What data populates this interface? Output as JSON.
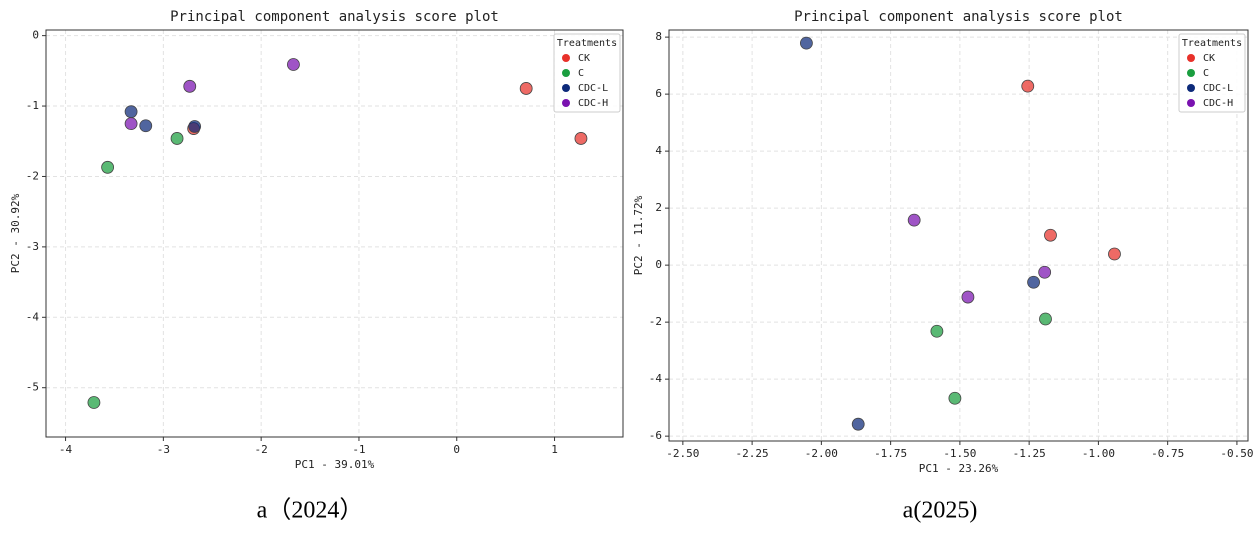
{
  "chart_data": [
    {
      "type": "scatter",
      "title": "Principal component analysis score plot",
      "caption": "a（2024）",
      "x_label": "PC1 - 39.01%",
      "y_label": "PC2 - 30.92%",
      "legend_title": "Treatments",
      "legend": "upper right",
      "grid": true,
      "xlim": [
        -4.2,
        1.7
      ],
      "ylim": [
        -5.7,
        0.08
      ],
      "xticks": [
        -4,
        -3,
        -2,
        -1,
        0,
        1
      ],
      "yticks": [
        0,
        -1,
        -2,
        -3,
        -4,
        -5
      ],
      "series": [
        {
          "name": "CK",
          "color": "#e8312a",
          "x": [
            0.71,
            1.27,
            -2.69
          ],
          "values": [
            -0.75,
            -1.46,
            -1.32
          ]
        },
        {
          "name": "C",
          "color": "#1a9e3f",
          "x": [
            -3.57,
            -3.71,
            -2.86
          ],
          "values": [
            -1.87,
            -5.21,
            -1.46
          ]
        },
        {
          "name": "CDC-L",
          "color": "#0d2a7a",
          "x": [
            -3.33,
            -3.18,
            -2.68
          ],
          "values": [
            -1.08,
            -1.28,
            -1.29
          ]
        },
        {
          "name": "CDC-H",
          "color": "#7a12b0",
          "x": [
            -2.73,
            -3.33,
            -1.67
          ],
          "values": [
            -0.72,
            -1.25,
            -0.41
          ]
        }
      ]
    },
    {
      "type": "scatter",
      "title": "Principal component analysis score plot",
      "caption": "a(2025)",
      "x_label": "PC1 - 23.26%",
      "y_label": "PC2 - 11.72%",
      "legend_title": "Treatments",
      "legend": "upper right",
      "grid": true,
      "xlim": [
        -2.55,
        -0.46
      ],
      "ylim": [
        -6.17,
        8.25
      ],
      "xticks": [
        {
          "value": -2.5,
          "label": "-2.50"
        },
        {
          "value": -2.25,
          "label": "-2.25"
        },
        {
          "value": -2,
          "label": "-2.00"
        },
        {
          "value": -1.75,
          "label": "-1.75"
        },
        {
          "value": -1.5,
          "label": "-1.50"
        },
        {
          "value": -1.25,
          "label": "-1.25"
        },
        {
          "value": -1,
          "label": "-1.00"
        },
        {
          "value": -0.75,
          "label": "-0.75"
        },
        {
          "value": -0.5,
          "label": "-0.50"
        }
      ],
      "yticks": [
        8,
        6,
        4,
        2,
        0,
        -2,
        -4,
        -6
      ],
      "series": [
        {
          "name": "CK",
          "color": "#e8312a",
          "x": [
            -1.255,
            -1.173,
            -0.942
          ],
          "values": [
            6.28,
            1.05,
            0.39
          ]
        },
        {
          "name": "C",
          "color": "#1a9e3f",
          "x": [
            -1.583,
            -1.191,
            -1.518
          ],
          "values": [
            -2.32,
            -1.89,
            -4.67
          ]
        },
        {
          "name": "CDC-L",
          "color": "#0d2a7a",
          "x": [
            -2.054,
            -1.234,
            -1.867
          ],
          "values": [
            7.79,
            -0.6,
            -5.58
          ]
        },
        {
          "name": "CDC-H",
          "color": "#7a12b0",
          "x": [
            -1.665,
            -1.471,
            -1.194
          ],
          "values": [
            1.58,
            -1.12,
            -0.25
          ]
        }
      ]
    }
  ]
}
